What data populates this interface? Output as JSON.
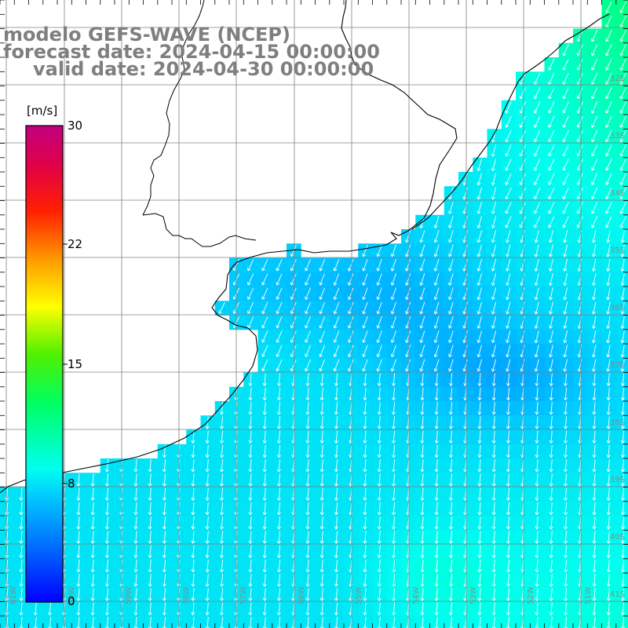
{
  "title": {
    "line1": "modelo GEFS-WAVE (NCEP)",
    "line2": "forecast date: 2024-04-15 00:00:00",
    "line3": "valid date: 2024-04-30 00:00:00"
  },
  "colorbar": {
    "unit": "[m/s]",
    "ticks": [
      "30",
      "22",
      "15",
      "8",
      "0"
    ]
  },
  "map": {
    "lat_labels": [
      "32S",
      "33S",
      "34S",
      "35S",
      "36S",
      "37S",
      "38S",
      "39S",
      "40S",
      "41S"
    ],
    "lon_labels": [
      "61W",
      "60W",
      "59W",
      "58W",
      "57W",
      "56W",
      "55W",
      "54W",
      "53W",
      "52W",
      "51W"
    ],
    "field": "wind speed with direction arrows",
    "colors": {
      "land": "#ffffff",
      "coast": "#000000",
      "grid": "#808080",
      "arrow": "#ffffff",
      "title": "#7f7f7f"
    }
  }
}
